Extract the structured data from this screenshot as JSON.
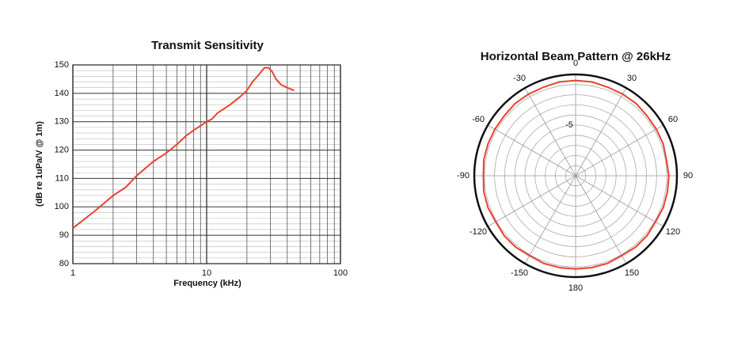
{
  "chart_data": [
    {
      "type": "line",
      "title": "Transmit Sensitivity",
      "x_label": "Frequency (kHz)",
      "y_label": "(dB re 1uPa/V @ 1m)",
      "x_scale": "log",
      "xlim": [
        1,
        100
      ],
      "xticks": [
        1,
        10,
        100
      ],
      "xgrid": [
        2,
        3,
        4,
        5,
        6,
        7,
        8,
        9,
        20,
        30,
        40,
        50,
        60,
        70,
        80,
        90
      ],
      "ylim": [
        80,
        150
      ],
      "yticks": [
        80,
        90,
        100,
        110,
        120,
        130,
        140,
        150
      ],
      "ygrid": [
        82,
        84,
        86,
        88,
        92,
        94,
        96,
        98,
        102,
        104,
        106,
        108,
        112,
        114,
        116,
        118,
        122,
        124,
        126,
        128,
        132,
        134,
        136,
        138,
        142,
        144,
        146,
        148
      ],
      "grid": true,
      "color": "#e8432e",
      "x": [
        1,
        1.5,
        2,
        2.5,
        3,
        4,
        5,
        6,
        7,
        8,
        10,
        11,
        12,
        15,
        18,
        20,
        22,
        25,
        27,
        29,
        31,
        33,
        36,
        40,
        45
      ],
      "values": [
        92.5,
        99,
        104,
        107,
        111,
        116,
        119,
        122,
        125,
        127,
        130,
        131,
        133,
        136,
        139,
        141,
        144,
        147,
        149,
        149,
        147.5,
        145,
        143,
        142,
        141
      ]
    },
    {
      "type": "polar",
      "title": "Horizontal Beam Pattern @ 26kHz",
      "color": "#e8432e",
      "rlim": [
        -10,
        0
      ],
      "rticks": [
        -5
      ],
      "rgrid": [
        -9,
        -8,
        -7,
        -6,
        -5,
        -4,
        -3,
        -2,
        -1
      ],
      "thetaticks": [
        0,
        30,
        60,
        90,
        120,
        150,
        180,
        -150,
        -120,
        -90,
        -60,
        -30
      ],
      "x": [
        -170,
        -160,
        -150,
        -140,
        -130,
        -120,
        -110,
        -100,
        -90,
        -80,
        -70,
        -60,
        -50,
        -40,
        -30,
        -20,
        -10,
        0,
        10,
        20,
        30,
        40,
        50,
        60,
        70,
        80,
        90,
        100,
        110,
        120,
        130,
        140,
        150,
        160,
        170,
        180
      ],
      "values": [
        -0.8,
        -0.8,
        -0.9,
        -0.8,
        -0.8,
        -0.9,
        -0.8,
        -0.8,
        -0.9,
        -0.8,
        -0.8,
        -0.8,
        -0.8,
        -0.7,
        -0.7,
        -0.7,
        -0.6,
        -0.6,
        -0.6,
        -0.7,
        -0.7,
        -0.7,
        -0.8,
        -0.8,
        -0.8,
        -0.9,
        -0.8,
        -0.8,
        -0.8,
        -0.9,
        -0.8,
        -0.8,
        -0.9,
        -0.8,
        -0.8,
        -0.8
      ]
    }
  ]
}
